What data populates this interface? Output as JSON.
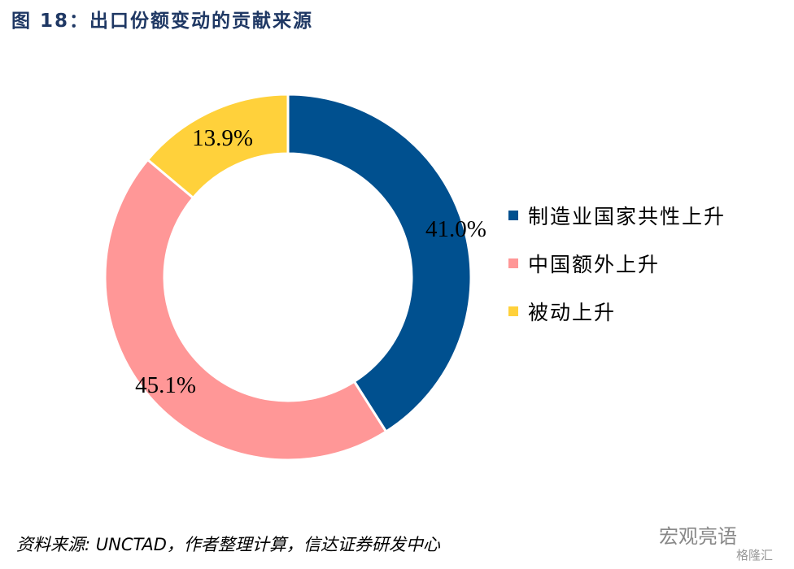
{
  "title": "图 18：出口份额变动的贡献来源",
  "chart_data": {
    "type": "pie",
    "variant": "donut",
    "title": "出口份额变动的贡献来源",
    "slices": [
      {
        "label": "制造业国家共性上升",
        "value": 41.0,
        "display": "41.0%",
        "color": "#00508f"
      },
      {
        "label": "中国额外上升",
        "value": 45.1,
        "display": "45.1%",
        "color": "#ff9797"
      },
      {
        "label": "被动上升",
        "value": 13.9,
        "display": "13.9%",
        "color": "#ffd13b"
      }
    ],
    "legend_position": "right"
  },
  "source": "资料来源:   UNCTAD，作者整理计算，信达证券研发中心",
  "watermark": {
    "line1": "宏观亮语",
    "line2": "格隆汇"
  }
}
